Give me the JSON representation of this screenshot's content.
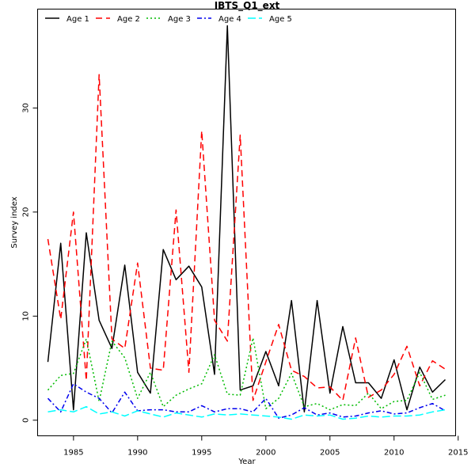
{
  "chart_data": {
    "type": "line",
    "title": "IBTS_Q1_ext",
    "xlabel": "Year",
    "ylabel": "Survey index",
    "xlim": [
      1982.2,
      2014.8
    ],
    "ylim": [
      -1.5,
      39.5
    ],
    "xticks": [
      "1985",
      "1990",
      "1995",
      "2000",
      "2005",
      "2010",
      "2015"
    ],
    "yticks": [
      "0",
      "10",
      "20",
      "30"
    ],
    "legend_position": "top-left",
    "grid": false,
    "x": [
      1983,
      1984,
      1985,
      1986,
      1987,
      1988,
      1989,
      1990,
      1991,
      1992,
      1993,
      1994,
      1995,
      1996,
      1997,
      1998,
      1999,
      2000,
      2001,
      2002,
      2003,
      2004,
      2005,
      2006,
      2007,
      2008,
      2009,
      2010,
      2011,
      2012,
      2013,
      2014
    ],
    "series": [
      {
        "name": "Age 1",
        "color": "#000000",
        "dash": "solid",
        "values": [
          5.6,
          17.0,
          1.0,
          18.0,
          9.6,
          6.9,
          14.9,
          4.6,
          2.6,
          16.4,
          13.5,
          14.8,
          12.8,
          4.4,
          37.9,
          2.9,
          3.3,
          6.6,
          3.3,
          11.5,
          0.8,
          11.5,
          2.6,
          9.0,
          3.6,
          3.6,
          2.1,
          5.8,
          1.0,
          5.1,
          2.7,
          3.9
        ]
      },
      {
        "name": "Age 2",
        "color": "#ff0000",
        "dash": "long",
        "values": [
          17.4,
          9.7,
          20.0,
          3.8,
          33.2,
          7.8,
          6.9,
          15.1,
          5.0,
          4.8,
          20.2,
          4.6,
          27.8,
          9.6,
          7.6,
          27.4,
          1.9,
          5.6,
          9.2,
          4.8,
          4.2,
          3.1,
          3.2,
          1.9,
          7.9,
          2.2,
          2.9,
          4.4,
          7.1,
          3.3,
          5.7,
          4.9
        ]
      },
      {
        "name": "Age 3",
        "color": "#00bb00",
        "dash": "dotted",
        "values": [
          2.9,
          4.3,
          4.5,
          7.8,
          1.8,
          7.6,
          6.0,
          2.1,
          4.6,
          1.3,
          2.4,
          3.0,
          3.5,
          6.3,
          2.5,
          2.4,
          7.9,
          1.1,
          2.1,
          4.5,
          1.3,
          1.6,
          1.0,
          1.5,
          1.4,
          2.6,
          1.1,
          1.8,
          1.9,
          4.6,
          2.0,
          2.4
        ]
      },
      {
        "name": "Age 4",
        "color": "#0000ee",
        "dash": "dashdot",
        "values": [
          2.1,
          0.8,
          3.5,
          2.7,
          2.1,
          0.7,
          2.7,
          0.9,
          1.0,
          1.0,
          0.8,
          0.8,
          1.4,
          0.8,
          1.1,
          1.1,
          0.8,
          2.1,
          0.2,
          0.5,
          1.2,
          0.5,
          0.7,
          0.3,
          0.4,
          0.7,
          0.9,
          0.6,
          0.7,
          1.2,
          1.6,
          0.9
        ]
      },
      {
        "name": "Age 5",
        "color": "#00ffff",
        "dash": "longdash",
        "values": [
          0.8,
          1.0,
          0.8,
          1.3,
          0.6,
          0.8,
          0.4,
          0.9,
          0.6,
          0.3,
          0.7,
          0.5,
          0.3,
          0.6,
          0.5,
          0.6,
          0.5,
          0.4,
          0.3,
          0.1,
          0.5,
          0.4,
          0.5,
          0.1,
          0.2,
          0.4,
          0.3,
          0.4,
          0.4,
          0.5,
          0.8,
          1.0
        ]
      }
    ]
  }
}
